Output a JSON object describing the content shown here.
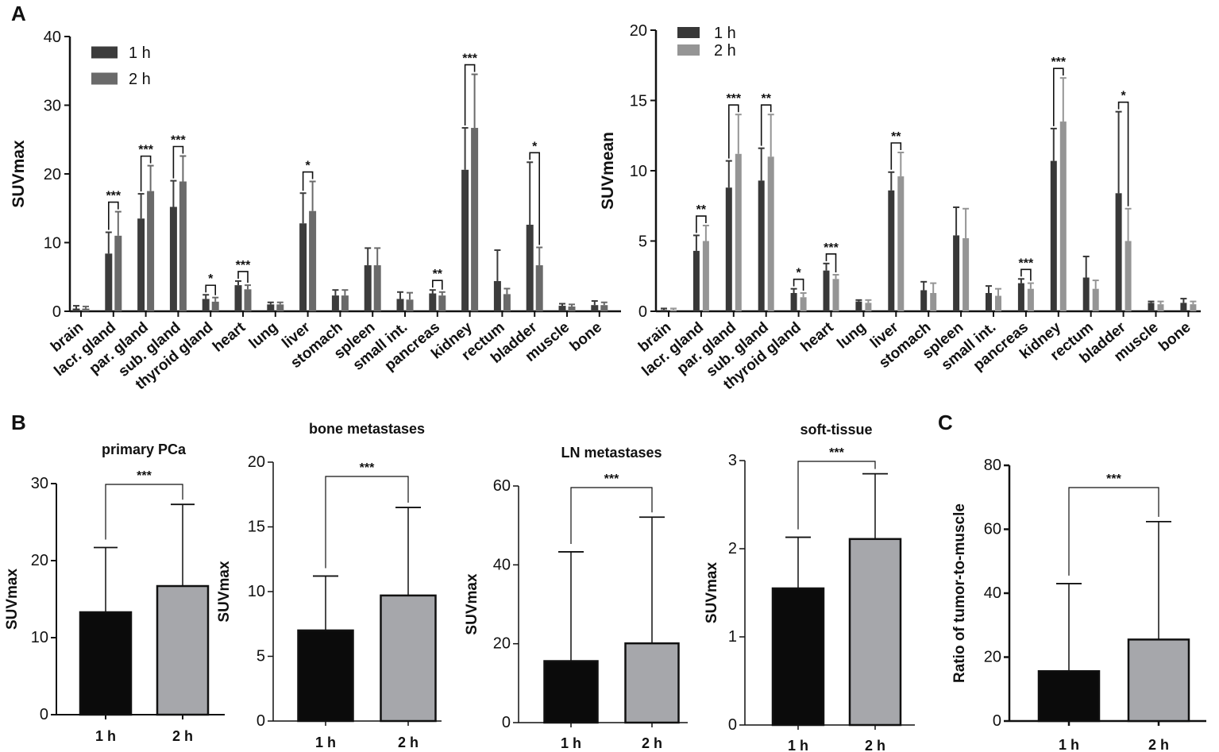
{
  "panel_labels": {
    "a": "A",
    "b": "B",
    "c": "C"
  },
  "colors": {
    "A_left_1h": "#3c3c3c",
    "A_left_2h": "#6a6a6a",
    "A_right_1h": "#383838",
    "A_right_2h": "#959595",
    "B_1h": "#0b0b0b",
    "B_2h": "#a6a7ab"
  },
  "chart_data": [
    {
      "id": "A_suvmax",
      "type": "bar",
      "ylabel": "SUVmax",
      "ylim": [
        0,
        40
      ],
      "yticks": [
        0,
        10,
        20,
        30,
        40
      ],
      "categories": [
        "brain",
        "lacr. gland",
        "par. gland",
        "sub. gland",
        "thyroid gland",
        "heart",
        "lung",
        "liver",
        "stomach",
        "spleen",
        "small int.",
        "pancreas",
        "kidney",
        "rectum",
        "bladder",
        "muscle",
        "bone"
      ],
      "legend": [
        "1 h",
        "2 h"
      ],
      "series": [
        {
          "name": "1 h",
          "values": [
            0.4,
            8.4,
            13.5,
            15.2,
            1.8,
            3.8,
            1.0,
            12.8,
            2.3,
            6.7,
            1.8,
            2.6,
            20.6,
            4.4,
            12.6,
            0.8,
            0.9
          ],
          "errors": [
            0.4,
            3.1,
            3.6,
            3.8,
            0.6,
            0.6,
            0.3,
            4.4,
            0.8,
            2.5,
            1.0,
            0.5,
            6.1,
            4.5,
            9.1,
            0.3,
            0.6
          ]
        },
        {
          "name": "2 h",
          "values": [
            0.4,
            11.0,
            17.5,
            18.9,
            1.4,
            3.2,
            1.0,
            14.6,
            2.3,
            6.7,
            1.7,
            2.3,
            26.7,
            2.5,
            6.7,
            0.7,
            0.9
          ],
          "errors": [
            0.3,
            3.5,
            3.7,
            3.7,
            0.6,
            0.6,
            0.3,
            4.3,
            0.8,
            2.5,
            1.0,
            0.5,
            7.8,
            0.8,
            2.6,
            0.3,
            0.4
          ]
        }
      ],
      "significance": [
        {
          "category": 1,
          "label": "***"
        },
        {
          "category": 2,
          "label": "***"
        },
        {
          "category": 3,
          "label": "***"
        },
        {
          "category": 4,
          "label": "*"
        },
        {
          "category": 5,
          "label": "***"
        },
        {
          "category": 7,
          "label": "*"
        },
        {
          "category": 11,
          "label": "**"
        },
        {
          "category": 12,
          "label": "***"
        },
        {
          "category": 14,
          "label": "*"
        }
      ]
    },
    {
      "id": "A_suvmean",
      "type": "bar",
      "ylabel": "SUVmean",
      "ylim": [
        0,
        20
      ],
      "yticks": [
        0,
        5,
        10,
        15,
        20
      ],
      "categories": [
        "brain",
        "lacr. gland",
        "par. gland",
        "sub. gland",
        "thyroid gland",
        "heart",
        "lung",
        "liver",
        "stomach",
        "spleen",
        "small int.",
        "pancreas",
        "kidney",
        "rectum",
        "bladder",
        "muscle",
        "bone"
      ],
      "legend": [
        "1 h",
        "2 h"
      ],
      "series": [
        {
          "name": "1 h",
          "values": [
            0.1,
            4.3,
            8.8,
            9.3,
            1.3,
            2.9,
            0.7,
            8.6,
            1.5,
            5.4,
            1.3,
            2.0,
            10.7,
            2.4,
            8.4,
            0.6,
            0.6
          ],
          "errors": [
            0.1,
            1.1,
            1.9,
            2.3,
            0.3,
            0.5,
            0.1,
            1.3,
            0.6,
            2.0,
            0.5,
            0.3,
            2.3,
            1.5,
            5.8,
            0.1,
            0.3
          ]
        },
        {
          "name": "2 h",
          "values": [
            0.1,
            5.0,
            11.2,
            11.0,
            1.0,
            2.3,
            0.6,
            9.6,
            1.3,
            5.2,
            1.1,
            1.6,
            13.5,
            1.6,
            5.0,
            0.5,
            0.5
          ],
          "errors": [
            0.1,
            1.1,
            2.8,
            3.0,
            0.3,
            0.3,
            0.2,
            1.7,
            0.7,
            2.1,
            0.5,
            0.4,
            3.1,
            0.6,
            2.3,
            0.2,
            0.2
          ]
        }
      ],
      "significance": [
        {
          "category": 1,
          "label": "**"
        },
        {
          "category": 2,
          "label": "***"
        },
        {
          "category": 3,
          "label": "**"
        },
        {
          "category": 4,
          "label": "*"
        },
        {
          "category": 5,
          "label": "***"
        },
        {
          "category": 7,
          "label": "**"
        },
        {
          "category": 11,
          "label": "***"
        },
        {
          "category": 12,
          "label": "***"
        },
        {
          "category": 14,
          "label": "*"
        }
      ]
    },
    {
      "id": "B_primary",
      "type": "bar",
      "title": "primary PCa",
      "ylabel": "SUVmax",
      "ylim": [
        0,
        30
      ],
      "yticks": [
        0,
        10,
        20,
        30
      ],
      "categories": [
        "1 h",
        "2 h"
      ],
      "values": [
        13.3,
        16.7
      ],
      "errors": [
        8.4,
        10.6
      ],
      "significance": "***"
    },
    {
      "id": "B_bone",
      "type": "bar",
      "title": "bone metastases",
      "ylabel": "SUVmax",
      "ylim": [
        0,
        20
      ],
      "yticks": [
        0,
        5,
        10,
        15,
        20
      ],
      "categories": [
        "1 h",
        "2 h"
      ],
      "values": [
        7.0,
        9.7
      ],
      "errors": [
        4.2,
        6.8
      ],
      "significance": "***"
    },
    {
      "id": "B_ln",
      "type": "bar",
      "title": "LN metastases",
      "ylabel": "SUVmax",
      "ylim": [
        0,
        60
      ],
      "yticks": [
        0,
        20,
        40,
        60
      ],
      "categories": [
        "1 h",
        "2 h"
      ],
      "values": [
        15.6,
        20.1
      ],
      "errors": [
        27.7,
        32.0
      ],
      "significance": "***"
    },
    {
      "id": "B_soft",
      "type": "bar",
      "title": "soft-tissue",
      "ylabel": "SUVmax",
      "ylim": [
        0,
        3
      ],
      "yticks": [
        0,
        1,
        2,
        3
      ],
      "categories": [
        "1 h",
        "2 h"
      ],
      "values": [
        1.55,
        2.11
      ],
      "errors": [
        0.58,
        0.74
      ],
      "significance": "***"
    },
    {
      "id": "C_ratio",
      "type": "bar",
      "ylabel": "Ratio of tumor-to-muscle",
      "ylim": [
        0,
        80
      ],
      "yticks": [
        0,
        20,
        40,
        60,
        80
      ],
      "categories": [
        "1 h",
        "2 h"
      ],
      "values": [
        15.6,
        25.5
      ],
      "errors": [
        27.4,
        36.9
      ],
      "significance": "***"
    }
  ]
}
